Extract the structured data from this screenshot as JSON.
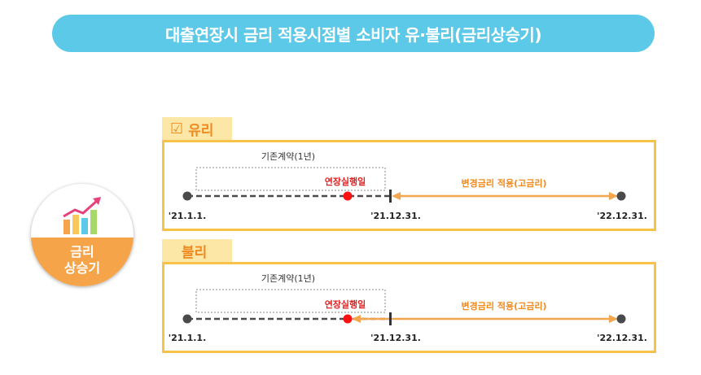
{
  "title": "대출연장시 금리 적용시점별 소비자 유·불리(금리상승기)",
  "badge": {
    "line1": "금리",
    "line2": "상승기"
  },
  "panels": [
    {
      "tab": "유리",
      "checkbox": "☑",
      "contract_label": "기존계약(1년)",
      "extension_label": "연장실행일",
      "changed_rate_label": "변경금리 적용(고금리)",
      "dates": [
        "'21.1.1.",
        "'21.12.31.",
        "'22.12.31."
      ]
    },
    {
      "tab": "불리",
      "contract_label": "기존계약(1년)",
      "extension_label": "연장실행일",
      "changed_rate_label": "변경금리 적용(고금리)",
      "dates": [
        "'21.1.1.",
        "'21.12.31.",
        "'22.12.31."
      ]
    }
  ],
  "colors": {
    "title_bg": "#5cc9e8",
    "panel_border": "#f8c24a",
    "tab_bg": "#fde7a6",
    "tab_text": "#f08a1e",
    "arrow": "#f3a64e",
    "red_dot": "#ff1010",
    "red_text": "#e02020",
    "badge_orange": "#f6a44a"
  }
}
